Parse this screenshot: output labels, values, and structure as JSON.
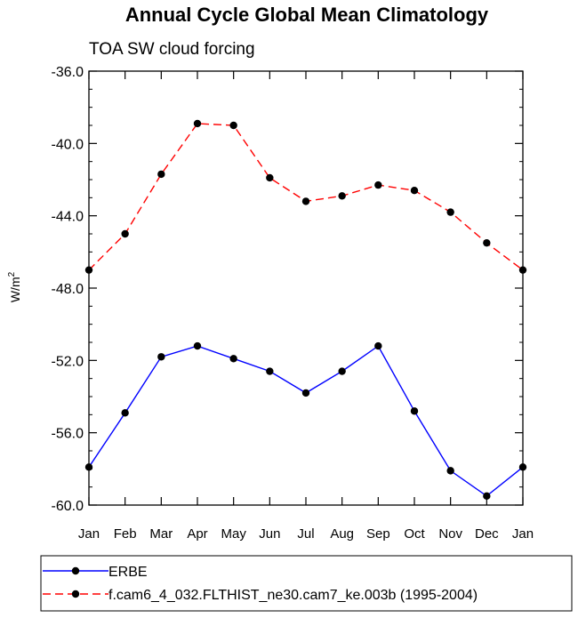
{
  "chart_data": {
    "type": "line",
    "title": "Annual Cycle Global Mean Climatology",
    "subtitle": "TOA SW cloud forcing",
    "ylabel": "W/m",
    "ylabel_sup": "2",
    "categories": [
      "Jan",
      "Feb",
      "Mar",
      "Apr",
      "May",
      "Jun",
      "Jul",
      "Aug",
      "Sep",
      "Oct",
      "Nov",
      "Dec",
      "Jan"
    ],
    "ylim": [
      -60,
      -36
    ],
    "yticks": [
      -36,
      -40,
      -44,
      -48,
      -52,
      -56,
      -60
    ],
    "ytick_labels": [
      "-36.0",
      "-40.0",
      "-44.0",
      "-48.0",
      "-52.0",
      "-56.0",
      "-60.0"
    ],
    "grid": false,
    "legend_position": "bottom",
    "series": [
      {
        "name": "ERBE",
        "color": "#0000ff",
        "dash": "solid",
        "values": [
          -57.9,
          -54.9,
          -51.8,
          -51.2,
          -51.9,
          -52.6,
          -53.8,
          -52.6,
          -51.2,
          -54.8,
          -58.1,
          -59.5,
          -57.9
        ]
      },
      {
        "name": "f.cam6_4_032.FLTHIST_ne30.cam7_ke.003b (1995-2004)",
        "color": "#ff0000",
        "dash": "dashed",
        "values": [
          -47.0,
          -45.0,
          -41.7,
          -38.9,
          -39.0,
          -41.9,
          -43.2,
          -42.9,
          -42.3,
          -42.6,
          -43.8,
          -45.5,
          -47.0
        ]
      }
    ]
  }
}
